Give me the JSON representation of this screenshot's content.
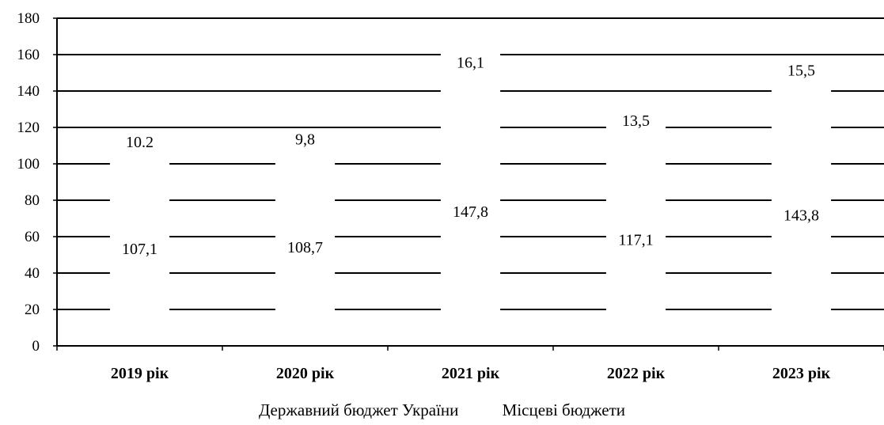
{
  "chart_data": {
    "type": "bar",
    "stacked": true,
    "title": "",
    "xlabel": "",
    "ylabel": "",
    "ylim": [
      0,
      180
    ],
    "ytick_step": 20,
    "grid": true,
    "legend_position": "bottom",
    "categories": [
      "2019 рік",
      "2020 рік",
      "2021 рік",
      "2022 рік",
      "2023 рік"
    ],
    "series": [
      {
        "name": "Державний бюджет України",
        "values": [
          107.1,
          108.7,
          147.8,
          117.1,
          143.8
        ],
        "labels": [
          "107,1",
          "108,7",
          "147,8",
          "117,1",
          "143,8"
        ]
      },
      {
        "name": "Місцеві бюджети",
        "values": [
          10.2,
          9.8,
          16.1,
          13.5,
          15.5
        ],
        "labels": [
          "10.2",
          "9,8",
          "16,1",
          "13,5",
          "15,5"
        ]
      }
    ],
    "colors": {
      "bar_fill": "#ffffff",
      "grid": "#000000",
      "axis": "#000000"
    }
  }
}
